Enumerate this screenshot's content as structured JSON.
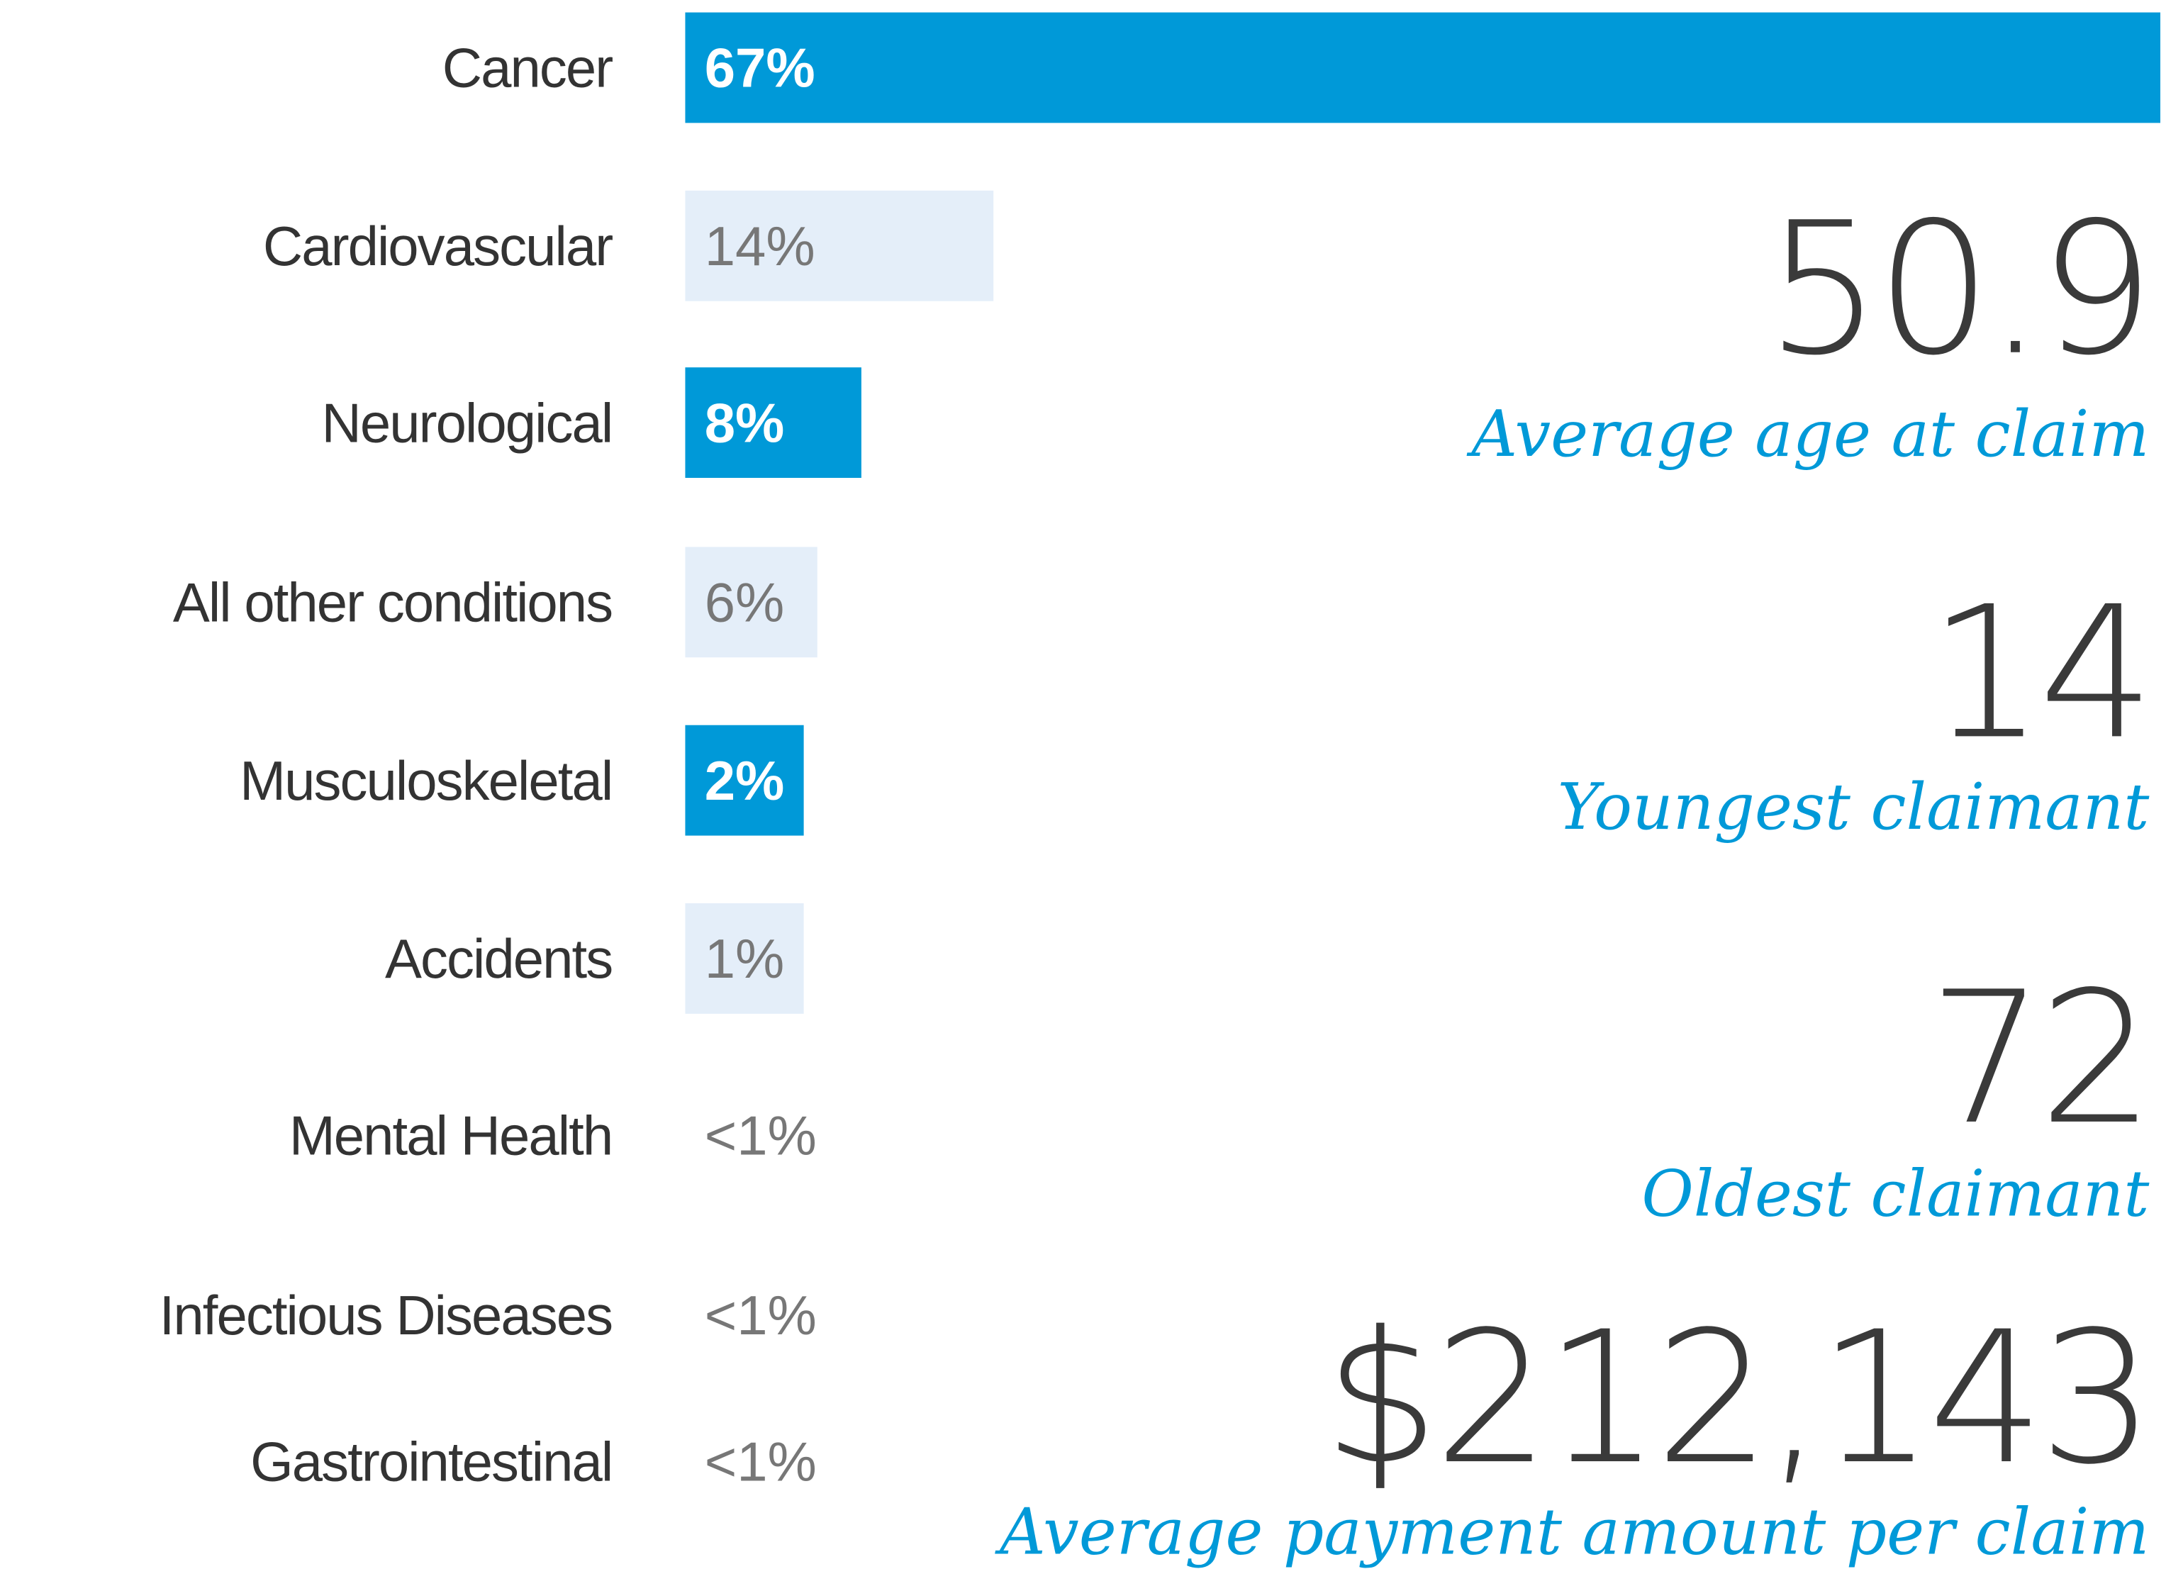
{
  "chart_data": {
    "type": "hbar",
    "categories": [
      "Cancer",
      "Cardiovascular",
      "Neurological",
      "All other conditions",
      "Musculoskeletal",
      "Accidents",
      "Mental Health",
      "Infectious Diseases",
      "Gastrointestinal"
    ],
    "values": [
      67,
      14,
      8,
      6,
      2,
      1,
      null,
      null,
      null
    ],
    "value_labels": [
      "67%",
      "14%",
      "8%",
      "6%",
      "2%",
      "1%",
      "<1%",
      "<1%",
      "<1%"
    ],
    "colors": [
      "#0099d8",
      "#e4eef9",
      "#0099d8",
      "#e4eef9",
      "#0099d8",
      "#e4eef9",
      "#0099d8",
      "#e4eef9",
      "#0099d8"
    ]
  },
  "stats": [
    {
      "value": "50.9",
      "label": "Average age at claim"
    },
    {
      "value": "14",
      "label": "Youngest claimant"
    },
    {
      "value": "72",
      "label": "Oldest claimant"
    },
    {
      "value": "$212,143",
      "label": "Average payment amount per claim"
    }
  ]
}
